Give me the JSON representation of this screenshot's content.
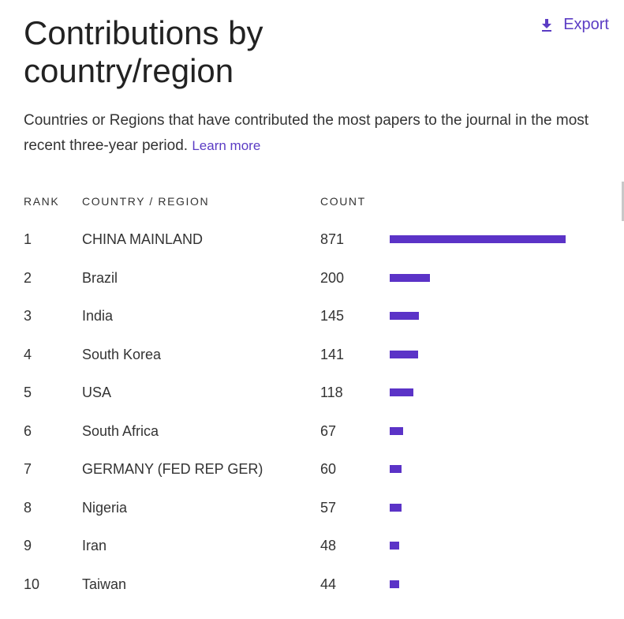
{
  "header": {
    "title": "Contributions by country/region",
    "export_label": "Export"
  },
  "description": {
    "text": "Countries or Regions that have contributed the most papers to the journal in the most recent three-year period.",
    "link_label": "Learn more"
  },
  "table": {
    "columns": [
      "RANK",
      "COUNTRY / REGION",
      "COUNT"
    ],
    "rows": [
      {
        "rank": "1",
        "country": "CHINA MAINLAND",
        "count": 871
      },
      {
        "rank": "2",
        "country": "Brazil",
        "count": 200
      },
      {
        "rank": "3",
        "country": "India",
        "count": 145
      },
      {
        "rank": "4",
        "country": "South Korea",
        "count": 141
      },
      {
        "rank": "5",
        "country": "USA",
        "count": 118
      },
      {
        "rank": "6",
        "country": "South Africa",
        "count": 67
      },
      {
        "rank": "7",
        "country": "GERMANY (FED REP GER)",
        "count": 60
      },
      {
        "rank": "8",
        "country": "Nigeria",
        "count": 57
      },
      {
        "rank": "9",
        "country": "Iran",
        "count": 48
      },
      {
        "rank": "10",
        "country": "Taiwan",
        "count": 44
      }
    ]
  },
  "colors": {
    "accent": "#5b3cc4",
    "bar": "#5b33c7"
  },
  "icons": {
    "export": "download-icon"
  }
}
